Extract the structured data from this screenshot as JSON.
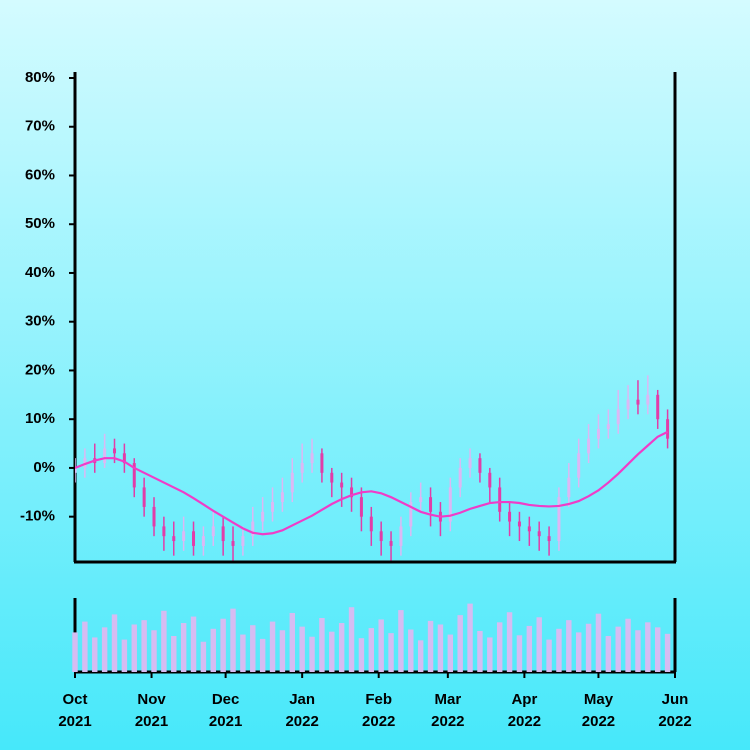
{
  "chart_data": {
    "type": "candlestick",
    "x": [
      0,
      4,
      8,
      12,
      16,
      20,
      24,
      28,
      32,
      36,
      40,
      44,
      48,
      52,
      56,
      60,
      64,
      68,
      72,
      76,
      80,
      84,
      88,
      92,
      96,
      100,
      104,
      108,
      112,
      116,
      120,
      124,
      128,
      132,
      136,
      140,
      144,
      148,
      152,
      156,
      160,
      164,
      168,
      172,
      176,
      180,
      184,
      188,
      192,
      196,
      200,
      204,
      208,
      212,
      216,
      220,
      224,
      228,
      232,
      236,
      240
    ],
    "open": [
      -1,
      0,
      2,
      1,
      4,
      3,
      1,
      -4,
      -8,
      -12,
      -14,
      -15,
      -13,
      -16,
      -14,
      -12,
      -15,
      -16,
      -14,
      -11,
      -9,
      -7,
      -5,
      -1,
      1,
      3,
      -1,
      -3,
      -4,
      -6,
      -10,
      -13,
      -15,
      -16,
      -12,
      -7,
      -6,
      -9,
      -11,
      -4,
      0,
      2,
      -1,
      -4,
      -9,
      -11,
      -12,
      -13,
      -14,
      -15,
      -6,
      -2,
      3,
      6,
      8,
      9,
      12,
      14,
      13,
      15,
      10
    ],
    "close": [
      0,
      2,
      1,
      4,
      3,
      1,
      -4,
      -8,
      -12,
      -14,
      -15,
      -13,
      -16,
      -14,
      -12,
      -15,
      -16,
      -14,
      -11,
      -9,
      -7,
      -5,
      -1,
      1,
      3,
      -1,
      -3,
      -4,
      -6,
      -10,
      -13,
      -15,
      -16,
      -12,
      -7,
      -6,
      -9,
      -11,
      -4,
      0,
      2,
      -1,
      -4,
      -9,
      -11,
      -12,
      -13,
      -14,
      -15,
      -6,
      -2,
      3,
      6,
      8,
      9,
      12,
      14,
      13,
      15,
      10,
      6
    ],
    "high": [
      2,
      4,
      5,
      7,
      6,
      5,
      2,
      -2,
      -6,
      -10,
      -11,
      -10,
      -11,
      -12,
      -9,
      -10,
      -12,
      -12,
      -8,
      -6,
      -4,
      -2,
      2,
      5,
      6,
      4,
      0,
      -1,
      -2,
      -4,
      -8,
      -11,
      -13,
      -10,
      -5,
      -3,
      -4,
      -7,
      -2,
      2,
      4,
      3,
      0,
      -2,
      -7,
      -9,
      -10,
      -11,
      -12,
      -4,
      1,
      6,
      9,
      11,
      12,
      16,
      17,
      18,
      19,
      16,
      12
    ],
    "low": [
      -3,
      -2,
      -1,
      0,
      1,
      -1,
      -6,
      -10,
      -14,
      -17,
      -18,
      -17,
      -18,
      -18,
      -16,
      -18,
      -19,
      -18,
      -16,
      -13,
      -11,
      -9,
      -7,
      -3,
      -1,
      -3,
      -6,
      -8,
      -9,
      -13,
      -16,
      -18,
      -19,
      -18,
      -14,
      -9,
      -12,
      -14,
      -13,
      -6,
      -2,
      -3,
      -7,
      -11,
      -14,
      -15,
      -16,
      -17,
      -18,
      -17,
      -8,
      -4,
      1,
      4,
      6,
      7,
      10,
      11,
      11,
      8,
      4
    ],
    "up_color": "#dcb8f4",
    "down_color": "#e23ca8",
    "moving_average": {
      "color": "#f03cc8",
      "values": [
        0,
        0.8,
        1.5,
        2,
        2,
        1.3,
        0,
        -1,
        -2,
        -3,
        -4,
        -5,
        -6.2,
        -7.5,
        -8.8,
        -10,
        -11.2,
        -12.4,
        -13.3,
        -13.6,
        -13.4,
        -12.8,
        -11.8,
        -10.8,
        -9.8,
        -8.6,
        -7.4,
        -6.4,
        -5.6,
        -5,
        -4.8,
        -5.2,
        -6,
        -7,
        -8,
        -9,
        -9.6,
        -10,
        -9.8,
        -9.2,
        -8.4,
        -7.8,
        -7.2,
        -7,
        -7,
        -7.2,
        -7.6,
        -7.8,
        -7.9,
        -7.8,
        -7.4,
        -6.8,
        -5.8,
        -4.6,
        -3,
        -1.2,
        0.8,
        2.8,
        4.6,
        6.4,
        7.4
      ]
    },
    "volume": {
      "color": "#d6bcf2",
      "ylim": [
        0,
        100
      ],
      "values": [
        55,
        70,
        48,
        62,
        80,
        45,
        66,
        72,
        58,
        85,
        50,
        68,
        77,
        42,
        60,
        74,
        88,
        52,
        65,
        46,
        70,
        58,
        82,
        63,
        49,
        75,
        56,
        68,
        90,
        47,
        61,
        73,
        54,
        86,
        59,
        44,
        71,
        66,
        52,
        79,
        95,
        57,
        48,
        69,
        83,
        51,
        64,
        76,
        45,
        60,
        72,
        55,
        67,
        81,
        50,
        63,
        74,
        58,
        69,
        62,
        53
      ]
    },
    "xlim": [
      0,
      243
    ],
    "xticks": [
      {
        "value": 0,
        "label": [
          "Oct",
          "2021"
        ]
      },
      {
        "value": 31,
        "label": [
          "Nov",
          "2021"
        ]
      },
      {
        "value": 61,
        "label": [
          "Dec",
          "2021"
        ]
      },
      {
        "value": 92,
        "label": [
          "Jan",
          "2022"
        ]
      },
      {
        "value": 123,
        "label": [
          "Feb",
          "2022"
        ]
      },
      {
        "value": 151,
        "label": [
          "Mar",
          "2022"
        ]
      },
      {
        "value": 182,
        "label": [
          "Apr",
          "2022"
        ]
      },
      {
        "value": 212,
        "label": [
          "May",
          "2022"
        ]
      },
      {
        "value": 243,
        "label": [
          "Jun",
          "2022"
        ]
      }
    ],
    "ylim": [
      -19.3,
      80
    ],
    "yticks": [
      {
        "value": -10,
        "label": "-10%"
      },
      {
        "value": 0,
        "label": "0%"
      },
      {
        "value": 10,
        "label": "10%"
      },
      {
        "value": 20,
        "label": "20%"
      },
      {
        "value": 30,
        "label": "30%"
      },
      {
        "value": 40,
        "label": "40%"
      },
      {
        "value": 50,
        "label": "50%"
      },
      {
        "value": 60,
        "label": "60%"
      },
      {
        "value": 70,
        "label": "70%"
      },
      {
        "value": 80,
        "label": "80%"
      }
    ]
  }
}
